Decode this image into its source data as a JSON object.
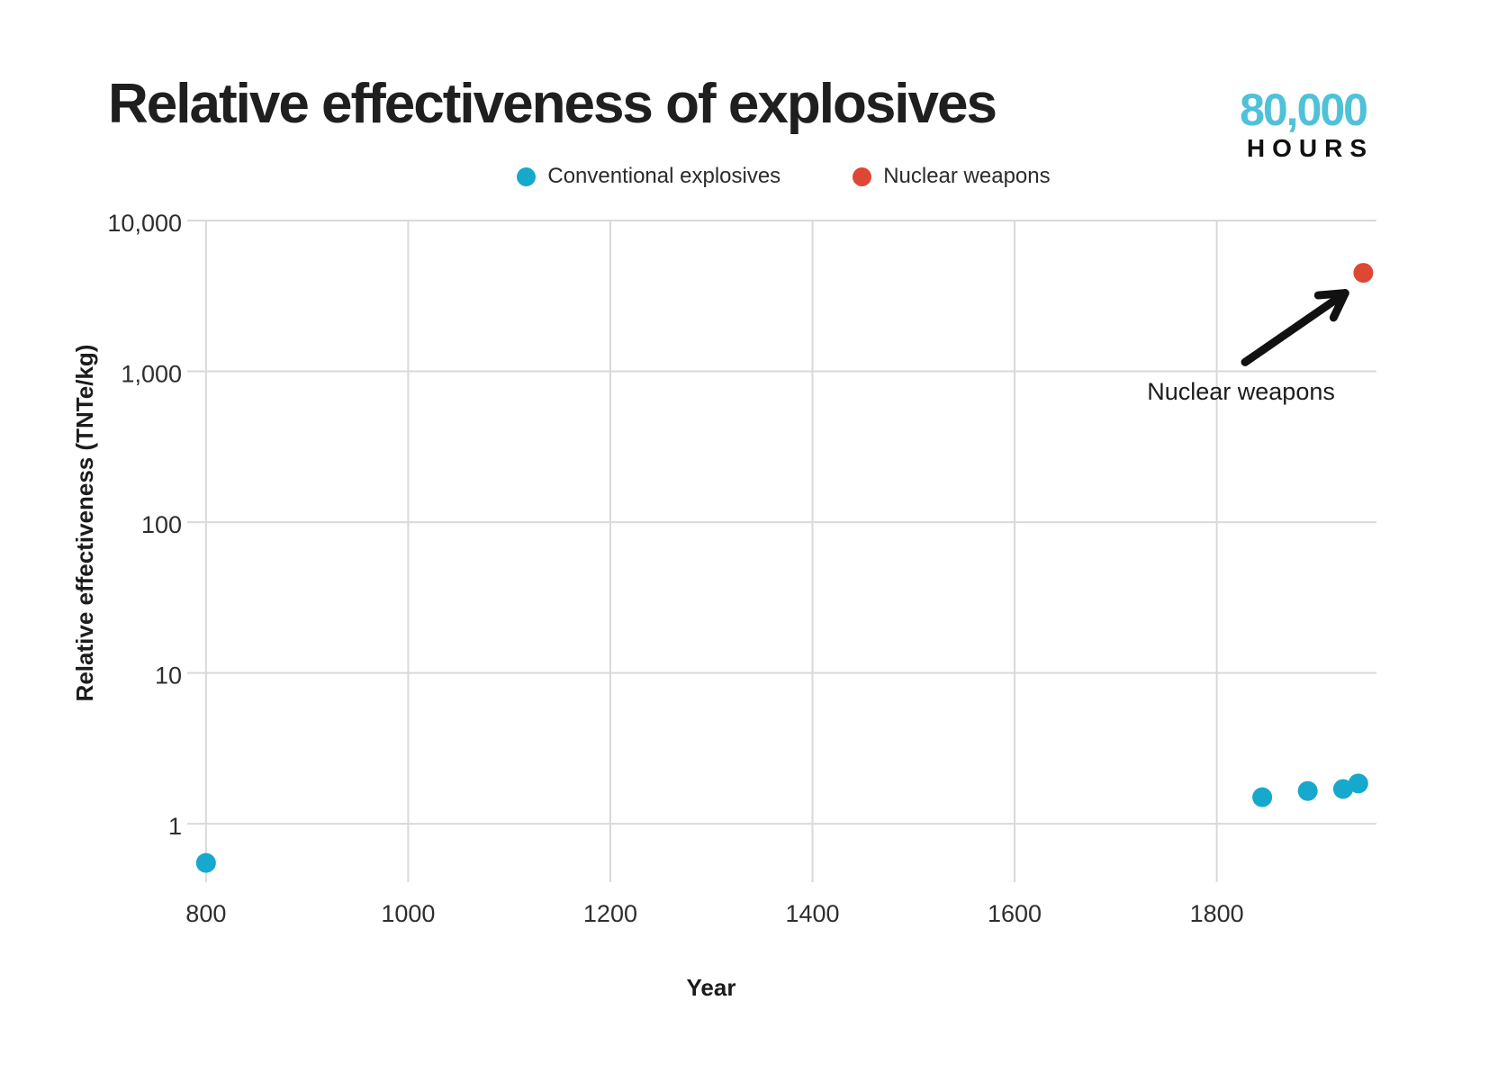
{
  "header": {
    "title": "Relative effectiveness of explosives",
    "logo": {
      "top": "80,000",
      "bottom": "HOURS"
    }
  },
  "legend": {
    "items": [
      {
        "label": "Conventional explosives",
        "color": "#17A8CD"
      },
      {
        "label": "Nuclear weapons",
        "color": "#DE4734"
      }
    ]
  },
  "chart_data": {
    "type": "scatter",
    "title": "Relative effectiveness of explosives",
    "xlabel": "Year",
    "ylabel": "Relative effectiveness (TNTe/kg)",
    "x_scale": "linear",
    "y_scale": "log",
    "xlim": [
      785,
      1958
    ],
    "ylim": [
      0.41,
      10000
    ],
    "grid": true,
    "grid_color": "#D9D9D9",
    "x_ticks": [
      {
        "value": 800,
        "label": "800"
      },
      {
        "value": 1000,
        "label": "1000"
      },
      {
        "value": 1200,
        "label": "1200"
      },
      {
        "value": 1400,
        "label": "1400"
      },
      {
        "value": 1600,
        "label": "1600"
      },
      {
        "value": 1800,
        "label": "1800"
      }
    ],
    "y_ticks": [
      {
        "value": 1,
        "label": "1"
      },
      {
        "value": 10,
        "label": "10"
      },
      {
        "value": 100,
        "label": "100"
      },
      {
        "value": 1000,
        "label": "1,000"
      },
      {
        "value": 10000,
        "label": "10,000"
      }
    ],
    "series": [
      {
        "name": "Conventional explosives",
        "color": "#17A8CD",
        "points": [
          {
            "year": 800,
            "value": 0.55
          },
          {
            "year": 1845,
            "value": 1.5
          },
          {
            "year": 1890,
            "value": 1.65
          },
          {
            "year": 1925,
            "value": 1.7
          },
          {
            "year": 1940,
            "value": 1.85
          }
        ]
      },
      {
        "name": "Nuclear weapons",
        "color": "#DE4734",
        "points": [
          {
            "year": 1945,
            "value": 4500
          }
        ]
      }
    ],
    "annotation": {
      "text": "Nuclear weapons",
      "text_at": {
        "year": 1824,
        "value": 650
      },
      "arrow_from": {
        "year": 1828,
        "value": 1150
      },
      "arrow_to": {
        "year": 1927,
        "value": 3300
      },
      "arrow_color": "#111111"
    }
  }
}
